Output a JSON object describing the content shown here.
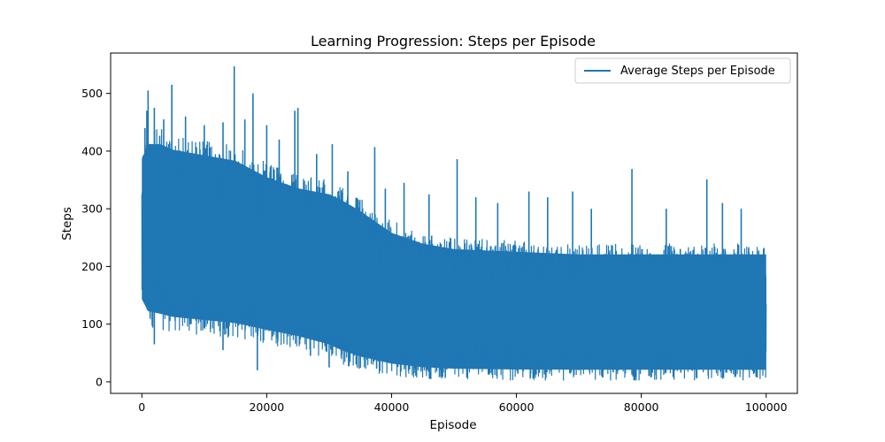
{
  "chart_data": {
    "type": "line",
    "title": "Learning Progression: Steps per Episode",
    "xlabel": "Episode",
    "ylabel": "Steps",
    "xlim": [
      -5000,
      105000
    ],
    "ylim": [
      -20,
      570
    ],
    "xticks": [
      0,
      20000,
      40000,
      60000,
      80000,
      100000
    ],
    "yticks": [
      0,
      100,
      200,
      300,
      400,
      500
    ],
    "grid": false,
    "legend_position": "top-right",
    "color": "#1f77b4",
    "series": [
      {
        "name": "Average Steps per Episode",
        "envelope": {
          "x": [
            0,
            1000,
            3000,
            5000,
            10000,
            15000,
            20000,
            25000,
            30000,
            32000,
            35000,
            40000,
            45000,
            50000,
            60000,
            70000,
            80000,
            90000,
            100000
          ],
          "upper": [
            410,
            440,
            440,
            430,
            420,
            410,
            380,
            360,
            350,
            340,
            320,
            280,
            260,
            250,
            245,
            240,
            240,
            240,
            240
          ],
          "lower": [
            120,
            95,
            90,
            85,
            80,
            75,
            65,
            55,
            40,
            30,
            20,
            10,
            5,
            3,
            2,
            2,
            2,
            2,
            2
          ]
        },
        "spikes": [
          {
            "x": 500,
            "y": 440
          },
          {
            "x": 800,
            "y": 470
          },
          {
            "x": 1000,
            "y": 505
          },
          {
            "x": 2000,
            "y": 475
          },
          {
            "x": 3500,
            "y": 455
          },
          {
            "x": 4800,
            "y": 515
          },
          {
            "x": 7000,
            "y": 460
          },
          {
            "x": 10000,
            "y": 445
          },
          {
            "x": 13000,
            "y": 450
          },
          {
            "x": 14800,
            "y": 547
          },
          {
            "x": 16500,
            "y": 455
          },
          {
            "x": 17800,
            "y": 500
          },
          {
            "x": 20000,
            "y": 445
          },
          {
            "x": 22000,
            "y": 420
          },
          {
            "x": 24500,
            "y": 470
          },
          {
            "x": 25000,
            "y": 475
          },
          {
            "x": 28000,
            "y": 395
          },
          {
            "x": 30500,
            "y": 412
          },
          {
            "x": 33000,
            "y": 365
          },
          {
            "x": 37300,
            "y": 407
          },
          {
            "x": 39000,
            "y": 335
          },
          {
            "x": 42000,
            "y": 345
          },
          {
            "x": 46000,
            "y": 325
          },
          {
            "x": 50500,
            "y": 386
          },
          {
            "x": 53500,
            "y": 320
          },
          {
            "x": 57000,
            "y": 310
          },
          {
            "x": 62000,
            "y": 330
          },
          {
            "x": 65000,
            "y": 320
          },
          {
            "x": 69000,
            "y": 330
          },
          {
            "x": 72000,
            "y": 300
          },
          {
            "x": 78500,
            "y": 369
          },
          {
            "x": 84000,
            "y": 300
          },
          {
            "x": 90500,
            "y": 351
          },
          {
            "x": 93000,
            "y": 310
          },
          {
            "x": 96000,
            "y": 300
          }
        ],
        "dips": [
          {
            "x": 18500,
            "y": 20
          },
          {
            "x": 13000,
            "y": 55
          },
          {
            "x": 2000,
            "y": 65
          },
          {
            "x": 27000,
            "y": 45
          },
          {
            "x": 30000,
            "y": 25
          }
        ]
      }
    ]
  }
}
